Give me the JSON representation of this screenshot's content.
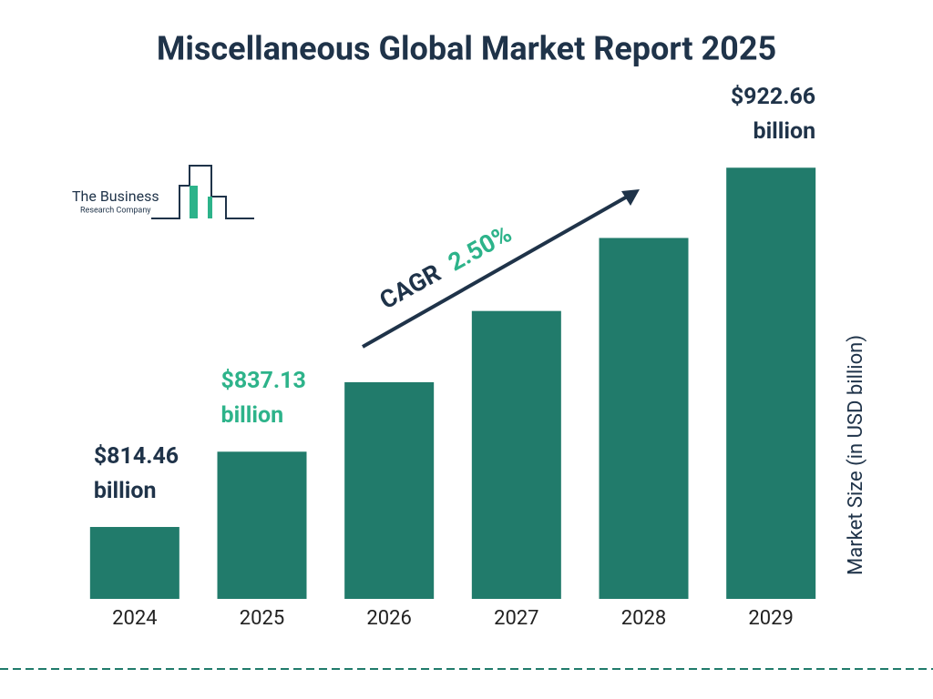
{
  "chart_data": {
    "type": "bar",
    "title": "Miscellaneous Global Market Report 2025",
    "categories": [
      "2024",
      "2025",
      "2026",
      "2027",
      "2028",
      "2029"
    ],
    "values": [
      814.46,
      837.13,
      858.06,
      879.51,
      901.5,
      922.66
    ],
    "value_labels": [
      "$814.46 billion",
      "$837.13 billion",
      null,
      null,
      null,
      "$922.66 billion"
    ],
    "value_label_colors": [
      "#1f3349",
      "#2db38a",
      null,
      null,
      null,
      "#1f3349"
    ],
    "color": "#217b6b",
    "ylim": [
      792.8,
      940
    ],
    "y_axis_label": "Market Size (in USD billion)",
    "cagr_label": "CAGR",
    "cagr_value": "2.50%",
    "logo": {
      "line1": "The Business",
      "line2": "Research Company"
    }
  }
}
